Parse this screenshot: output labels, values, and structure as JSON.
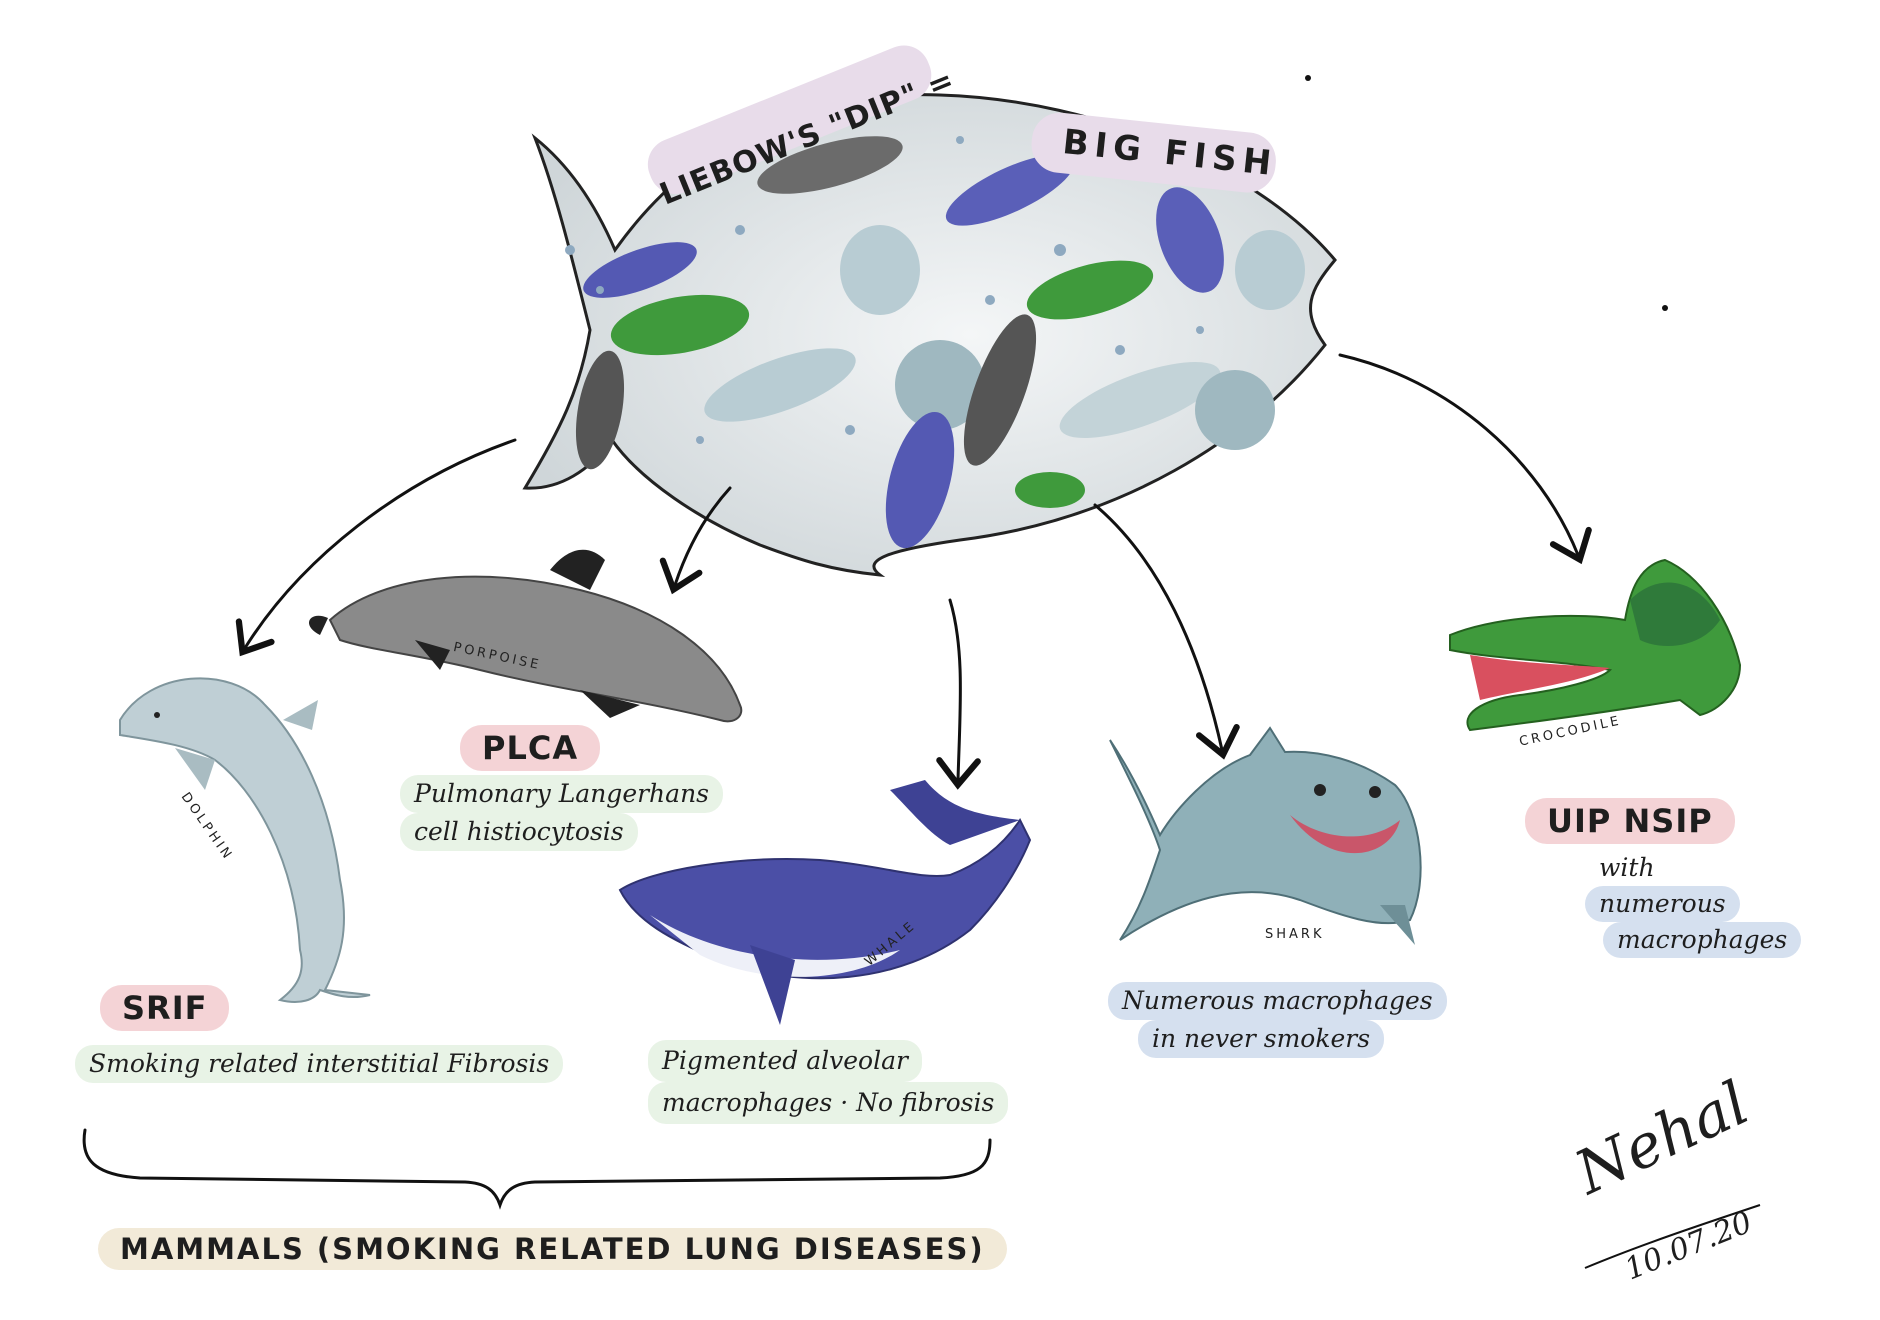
{
  "header": {
    "title_left": "LIEBOW'S \"DIP\" =",
    "title_right": "BIG FISH"
  },
  "groups": [
    {
      "animal": "DOLPHIN",
      "title": "SRIF",
      "description": [
        "Smoking related interstitial Fibrosis"
      ]
    },
    {
      "animal": "PORPOISE",
      "title": "PLCA",
      "description": [
        "Pulmonary Langerhans",
        "cell histiocytosis"
      ]
    },
    {
      "animal": "WHALE",
      "title": "",
      "description": [
        "Pigmented alveolar",
        "macrophages · No fibrosis"
      ]
    },
    {
      "animal": "SHARK",
      "title": "",
      "description": [
        "Numerous macrophages",
        "in never smokers"
      ]
    },
    {
      "animal": "CROCODILE",
      "title": "UIP NSIP",
      "description": [
        "with",
        "numerous",
        "macrophages"
      ]
    }
  ],
  "footer": {
    "brace_label": "MAMMALS (SMOKING RELATED LUNG DISEASES)"
  },
  "signature": {
    "name": "Nehal",
    "date": "10.07.20"
  },
  "colors": {
    "pink_tag": "#f4d3d6",
    "green_tag": "#e8f3e6",
    "blue_tag": "#d5e0ef",
    "beige_tag": "#f2ead8",
    "lavender_tag": "#e8dcea",
    "dolphin": "#bfcfd5",
    "porpoise": "#6b6b6b",
    "whale": "#4b4fa6",
    "shark": "#8fb0b8",
    "crocodile": "#3f9a3c"
  }
}
